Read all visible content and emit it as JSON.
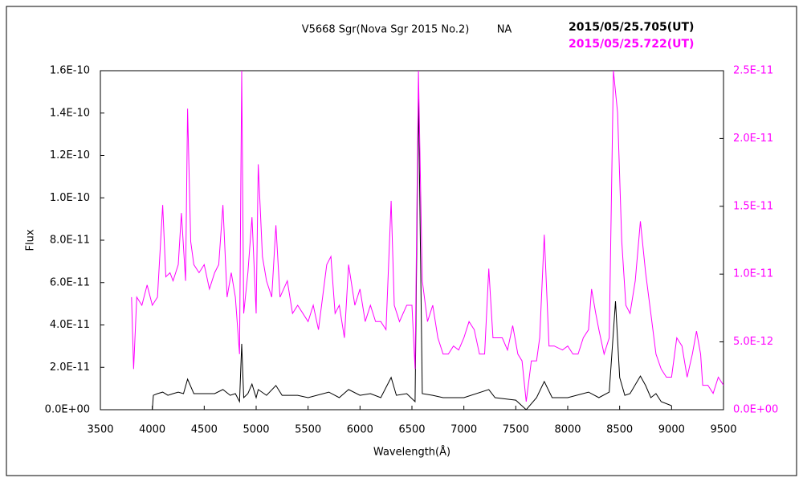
{
  "chart_data": {
    "type": "line",
    "title": "V5668 Sgr(Nova Sgr 2015 No.2)",
    "subtitle": "NA",
    "xlabel": "Wavelength(Å)",
    "ylabel": "Flux",
    "xlim": [
      3500,
      9500
    ],
    "xticks": [
      3500,
      4000,
      4500,
      5000,
      5500,
      6000,
      6500,
      7000,
      7500,
      8000,
      8500,
      9000,
      9500
    ],
    "ylim": [
      0,
      1.6e-10
    ],
    "yticks": [
      {
        "value": 0,
        "label": "0.0E+00"
      },
      {
        "value": 2e-11,
        "label": "2.0E-11"
      },
      {
        "value": 4e-11,
        "label": "4.0E-11"
      },
      {
        "value": 6e-11,
        "label": "6.0E-11"
      },
      {
        "value": 8e-11,
        "label": "8.0E-11"
      },
      {
        "value": 1e-10,
        "label": "1.0E-10"
      },
      {
        "value": 1.2e-10,
        "label": "1.2E-10"
      },
      {
        "value": 1.4e-10,
        "label": "1.4E-10"
      },
      {
        "value": 1.6e-10,
        "label": "1.6E-10"
      }
    ],
    "y2lim": [
      0,
      2.5e-11
    ],
    "y2ticks": [
      {
        "value": 0,
        "label": "0.0E+00"
      },
      {
        "value": 5e-12,
        "label": "5.0E-12"
      },
      {
        "value": 1e-11,
        "label": "1.0E-11"
      },
      {
        "value": 1.5e-11,
        "label": "1.5E-11"
      },
      {
        "value": 2e-11,
        "label": "2.0E-11"
      },
      {
        "value": 2.5e-11,
        "label": "2.5E-11"
      }
    ],
    "grid": false,
    "series": [
      {
        "name": "2015/05/25.705(UT)",
        "color": "#000000",
        "x": [
          4000,
          4010,
          4050,
          4100,
          4150,
          4200,
          4250,
          4300,
          4340,
          4400,
          4500,
          4600,
          4680,
          4750,
          4800,
          4840,
          4861,
          4880,
          4920,
          4960,
          5000,
          5020,
          5100,
          5190,
          5250,
          5400,
          5500,
          5700,
          5800,
          5890,
          6000,
          6100,
          6200,
          6300,
          6350,
          6450,
          6530,
          6563,
          6600,
          6700,
          6800,
          7000,
          7240,
          7300,
          7500,
          7600,
          7700,
          7774,
          7850,
          8000,
          8200,
          8300,
          8400,
          8460,
          8500,
          8550,
          8600,
          8700,
          8750,
          8800,
          8850,
          8900,
          9000
        ],
        "values": [
          0,
          6.8e-12,
          7.6e-12,
          8.3e-12,
          6.8e-12,
          7.6e-12,
          8.3e-12,
          7.6e-12,
          1.44e-11,
          7.6e-12,
          7.6e-12,
          7.6e-12,
          9.5e-12,
          6.8e-12,
          7.6e-12,
          3.8e-12,
          3.11e-11,
          5.7e-12,
          7.6e-12,
          1.21e-11,
          5.7e-12,
          9.5e-12,
          6.8e-12,
          1.14e-11,
          6.8e-12,
          6.8e-12,
          5.7e-12,
          8.3e-12,
          5.7e-12,
          9.5e-12,
          6.8e-12,
          7.6e-12,
          5.7e-12,
          1.52e-11,
          6.8e-12,
          7.6e-12,
          3.8e-12,
          1.49e-10,
          7.6e-12,
          6.8e-12,
          5.7e-12,
          5.7e-12,
          9.5e-12,
          5.7e-12,
          4.5e-12,
          0,
          5.7e-12,
          1.33e-11,
          5.7e-12,
          5.7e-12,
          8.3e-12,
          5.7e-12,
          8.3e-12,
          5.12e-11,
          1.52e-11,
          6.8e-12,
          7.6e-12,
          1.59e-11,
          1.14e-11,
          5.7e-12,
          7.6e-12,
          3.8e-12,
          1.9e-12
        ]
      },
      {
        "name": "2015/05/25.722(UT)",
        "color": "#ff00ff",
        "axis": "y2",
        "x": [
          3800,
          3820,
          3850,
          3900,
          3950,
          4000,
          4050,
          4100,
          4130,
          4170,
          4200,
          4250,
          4280,
          4320,
          4340,
          4370,
          4400,
          4450,
          4500,
          4550,
          4600,
          4640,
          4680,
          4720,
          4760,
          4800,
          4840,
          4861,
          4880,
          4920,
          4960,
          5000,
          5020,
          5060,
          5100,
          5150,
          5190,
          5230,
          5300,
          5350,
          5400,
          5450,
          5500,
          5550,
          5600,
          5680,
          5720,
          5760,
          5800,
          5850,
          5890,
          5950,
          6000,
          6050,
          6100,
          6150,
          6200,
          6250,
          6300,
          6330,
          6380,
          6450,
          6500,
          6530,
          6563,
          6600,
          6650,
          6700,
          6750,
          6800,
          6850,
          6900,
          6950,
          7000,
          7050,
          7100,
          7150,
          7200,
          7240,
          7280,
          7320,
          7370,
          7420,
          7470,
          7520,
          7560,
          7600,
          7650,
          7700,
          7730,
          7774,
          7820,
          7870,
          7950,
          8000,
          8050,
          8100,
          8150,
          8200,
          8230,
          8270,
          8300,
          8350,
          8400,
          8440,
          8480,
          8520,
          8560,
          8600,
          8650,
          8700,
          8750,
          8800,
          8850,
          8900,
          8950,
          9000,
          9050,
          9100,
          9150,
          9200,
          9240,
          9280,
          9300,
          9350,
          9400,
          9450,
          9500
        ],
        "values": [
          8.3e-12,
          3e-12,
          8.3e-12,
          7.7e-12,
          9.2e-12,
          7.7e-12,
          8.3e-12,
          1.51e-11,
          9.8e-12,
          1.01e-11,
          9.5e-12,
          1.07e-11,
          1.45e-11,
          9.5e-12,
          2.22e-11,
          1.24e-11,
          1.07e-11,
          1.01e-11,
          1.07e-11,
          8.9e-12,
          1.01e-11,
          1.07e-11,
          1.51e-11,
          8.3e-12,
          1.01e-11,
          8.3e-12,
          4.1e-12,
          2.5e-11,
          7.1e-12,
          1.01e-11,
          1.42e-11,
          7.1e-12,
          1.81e-11,
          1.13e-11,
          9.5e-12,
          8.3e-12,
          1.36e-11,
          8.3e-12,
          9.5e-12,
          7.1e-12,
          7.7e-12,
          7.1e-12,
          6.5e-12,
          7.7e-12,
          5.9e-12,
          1.07e-11,
          1.13e-11,
          7.1e-12,
          7.7e-12,
          5.3e-12,
          1.07e-11,
          7.7e-12,
          8.9e-12,
          6.5e-12,
          7.7e-12,
          6.5e-12,
          6.5e-12,
          5.9e-12,
          1.54e-11,
          7.7e-12,
          6.5e-12,
          7.7e-12,
          7.7e-12,
          3e-12,
          2.5e-11,
          9.5e-12,
          6.5e-12,
          7.7e-12,
          5.3e-12,
          4.1e-12,
          4.1e-12,
          4.7e-12,
          4.4e-12,
          5.3e-12,
          6.5e-12,
          5.9e-12,
          4.1e-12,
          4.1e-12,
          1.04e-11,
          5.3e-12,
          5.3e-12,
          5.3e-12,
          4.4e-12,
          6.2e-12,
          4.1e-12,
          3.6e-12,
          6e-13,
          3.6e-12,
          3.6e-12,
          5.3e-12,
          1.29e-11,
          4.7e-12,
          4.7e-12,
          4.4e-12,
          4.7e-12,
          4.1e-12,
          4.1e-12,
          5.3e-12,
          5.9e-12,
          8.9e-12,
          7.1e-12,
          5.9e-12,
          4.1e-12,
          5.3e-12,
          2.5e-11,
          2.19e-11,
          1.24e-11,
          7.7e-12,
          7.1e-12,
          9.5e-12,
          1.39e-11,
          1.01e-11,
          7.1e-12,
          4.1e-12,
          3e-12,
          2.4e-12,
          2.4e-12,
          5.3e-12,
          4.7e-12,
          2.4e-12,
          4.1e-12,
          5.8e-12,
          4.1e-12,
          1.8e-12,
          1.8e-12,
          1.2e-12,
          2.4e-12,
          1.8e-12
        ]
      }
    ]
  }
}
